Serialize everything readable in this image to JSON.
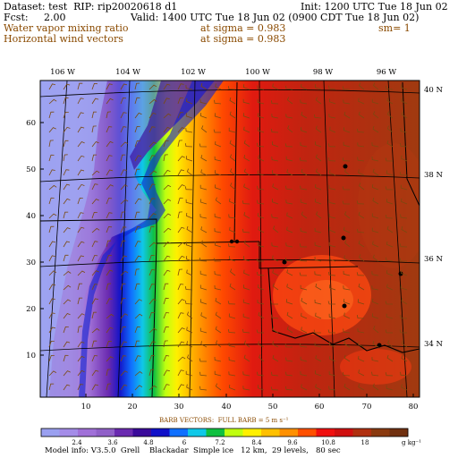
{
  "header": {
    "line1_left": "Dataset: test  RIP: rip20020618 d1",
    "line1_right": "Init: 1200 UTC Tue 18 Jun 02",
    "line2_left": "Fcst:     2.00",
    "line2_right": "Valid: 1400 UTC Tue 18 Jun 02 (0900 CDT Tue 18 Jun 02)",
    "field1": "Water vapor mixing ratio",
    "field1_level": "at sigma = 0.983",
    "field1_extra": "sm= 1",
    "field2": "Horizontal wind vectors",
    "field2_level": "at sigma = 0.983"
  },
  "top_lon_labels": [
    "106 W",
    "104 W",
    "102 W",
    "100 W",
    "98 W",
    "96 W"
  ],
  "right_lat_labels": [
    "40 N",
    "38 N",
    "36 N",
    "34 N"
  ],
  "y_ticks": [
    "60",
    "50",
    "40",
    "30",
    "20",
    "10"
  ],
  "x_ticks": [
    "10",
    "20",
    "30",
    "40",
    "50",
    "60",
    "70",
    "80"
  ],
  "barb_note": "BARB VECTORS:  FULL BARB = 5 m s⁻¹",
  "colorbar": {
    "labels": [
      "2.4",
      "3.6",
      "4.8",
      "6",
      "7.2",
      "8.4",
      "9.6",
      "10.8",
      "18"
    ],
    "units": "g kg⁻¹",
    "colors": [
      "#9aa0f0",
      "#a48ce8",
      "#a070d8",
      "#9060c8",
      "#6a2ab0",
      "#3a0a9a",
      "#1010c8",
      "#1070ff",
      "#10c8e8",
      "#10c040",
      "#c0ff10",
      "#fff000",
      "#ffc000",
      "#ff9000",
      "#ff5000",
      "#f01010",
      "#d01010",
      "#b03010",
      "#8a3a10",
      "#703010"
    ]
  },
  "footer": "Model info: V3.5.0  Grell    Blackadar  Simple ice   12 km,  29 levels,   80 sec"
}
